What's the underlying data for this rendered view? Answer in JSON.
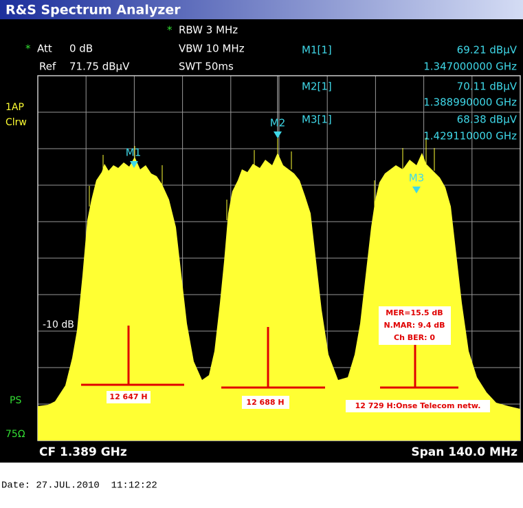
{
  "header": {
    "title": "R&S Spectrum Analyzer"
  },
  "settings": {
    "rbw_star": "*",
    "rbw": "RBW 3 MHz",
    "att_star": "*",
    "att": "Att",
    "att_value": "0 dB",
    "vbw": "VBW 10 MHz",
    "ref": "Ref",
    "ref_value": "71.75 dBµV",
    "swt": "SWT 50ms"
  },
  "markers": [
    {
      "name": "M1[1]",
      "level": "69.21 dBµV",
      "frequency": "1.347000000 GHz",
      "label": "M1"
    },
    {
      "name": "M2[1]",
      "level": "70.11 dBµV",
      "frequency": "1.388990000 GHz",
      "label": "M2"
    },
    {
      "name": "M3[1]",
      "level": "68.38 dBµV",
      "frequency": "1.429110000 GHz",
      "label": "M3"
    }
  ],
  "side": {
    "detector": "1AP",
    "trace_mode": "Clrw",
    "preselector": "PS",
    "impedance": "75Ω"
  },
  "plot": {
    "level_line_label": "-10 dB"
  },
  "annotations": {
    "mer": "MER=15.5 dB",
    "nmar": "N.MAR: 9.4 dB",
    "ber": "Ch BER: 0",
    "channels": [
      "12 647 H",
      "12 688 H",
      "12 729 H:Onse Telecom netw."
    ]
  },
  "footer": {
    "center_frequency": "CF 1.389 GHz",
    "span": "Span 140.0 MHz"
  },
  "date": "Date: 27.JUL.2010  11:12:22"
}
